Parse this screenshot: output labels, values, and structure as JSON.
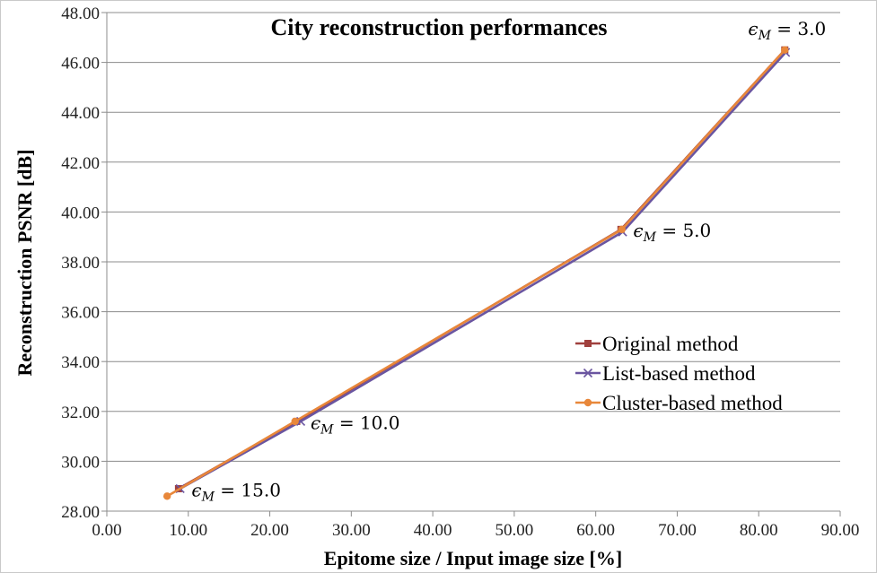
{
  "chart_data": {
    "type": "line",
    "title": "City reconstruction performances",
    "xlabel": "Epitome size / Input image size [%]",
    "ylabel": "Reconstruction PSNR [dB]",
    "xlim": [
      0,
      90
    ],
    "ylim": [
      28,
      48
    ],
    "x_ticks": [
      "0.00",
      "10.00",
      "20.00",
      "30.00",
      "40.00",
      "50.00",
      "60.00",
      "70.00",
      "80.00",
      "90.00"
    ],
    "y_ticks": [
      "28.00",
      "30.00",
      "32.00",
      "34.00",
      "36.00",
      "38.00",
      "40.00",
      "42.00",
      "44.00",
      "46.00",
      "48.00"
    ],
    "grid": "horizontal",
    "legend_position": "right",
    "series": [
      {
        "name": "Original method",
        "color": "#A0403D",
        "marker": "square",
        "points": [
          [
            8.8,
            28.9
          ],
          [
            23.3,
            31.6
          ],
          [
            63.1,
            39.3
          ],
          [
            83.2,
            46.5
          ]
        ]
      },
      {
        "name": "List-based method",
        "color": "#6A55A0",
        "marker": "x",
        "points": [
          [
            9.0,
            28.9
          ],
          [
            23.8,
            31.6
          ],
          [
            63.3,
            39.2
          ],
          [
            83.3,
            46.4
          ]
        ]
      },
      {
        "name": "Cluster-based method",
        "color": "#E8873A",
        "marker": "circle",
        "points": [
          [
            7.4,
            28.6
          ],
          [
            23.1,
            31.6
          ],
          [
            63.2,
            39.3
          ],
          [
            83.2,
            46.5
          ]
        ]
      }
    ],
    "annotations": [
      {
        "symbol": "ϵ",
        "sub": "M",
        "text": " = 15.0",
        "x": 10.4,
        "y": 28.6
      },
      {
        "symbol": "ϵ",
        "sub": "M",
        "text": " = 10.0",
        "x": 25.0,
        "y": 31.3
      },
      {
        "symbol": "ϵ",
        "sub": "M",
        "text": " = 5.0",
        "x": 64.6,
        "y": 39.0
      },
      {
        "symbol": "ϵ",
        "sub": "M",
        "text": " = 3.0",
        "x": 78.7,
        "y": 47.1
      }
    ]
  }
}
